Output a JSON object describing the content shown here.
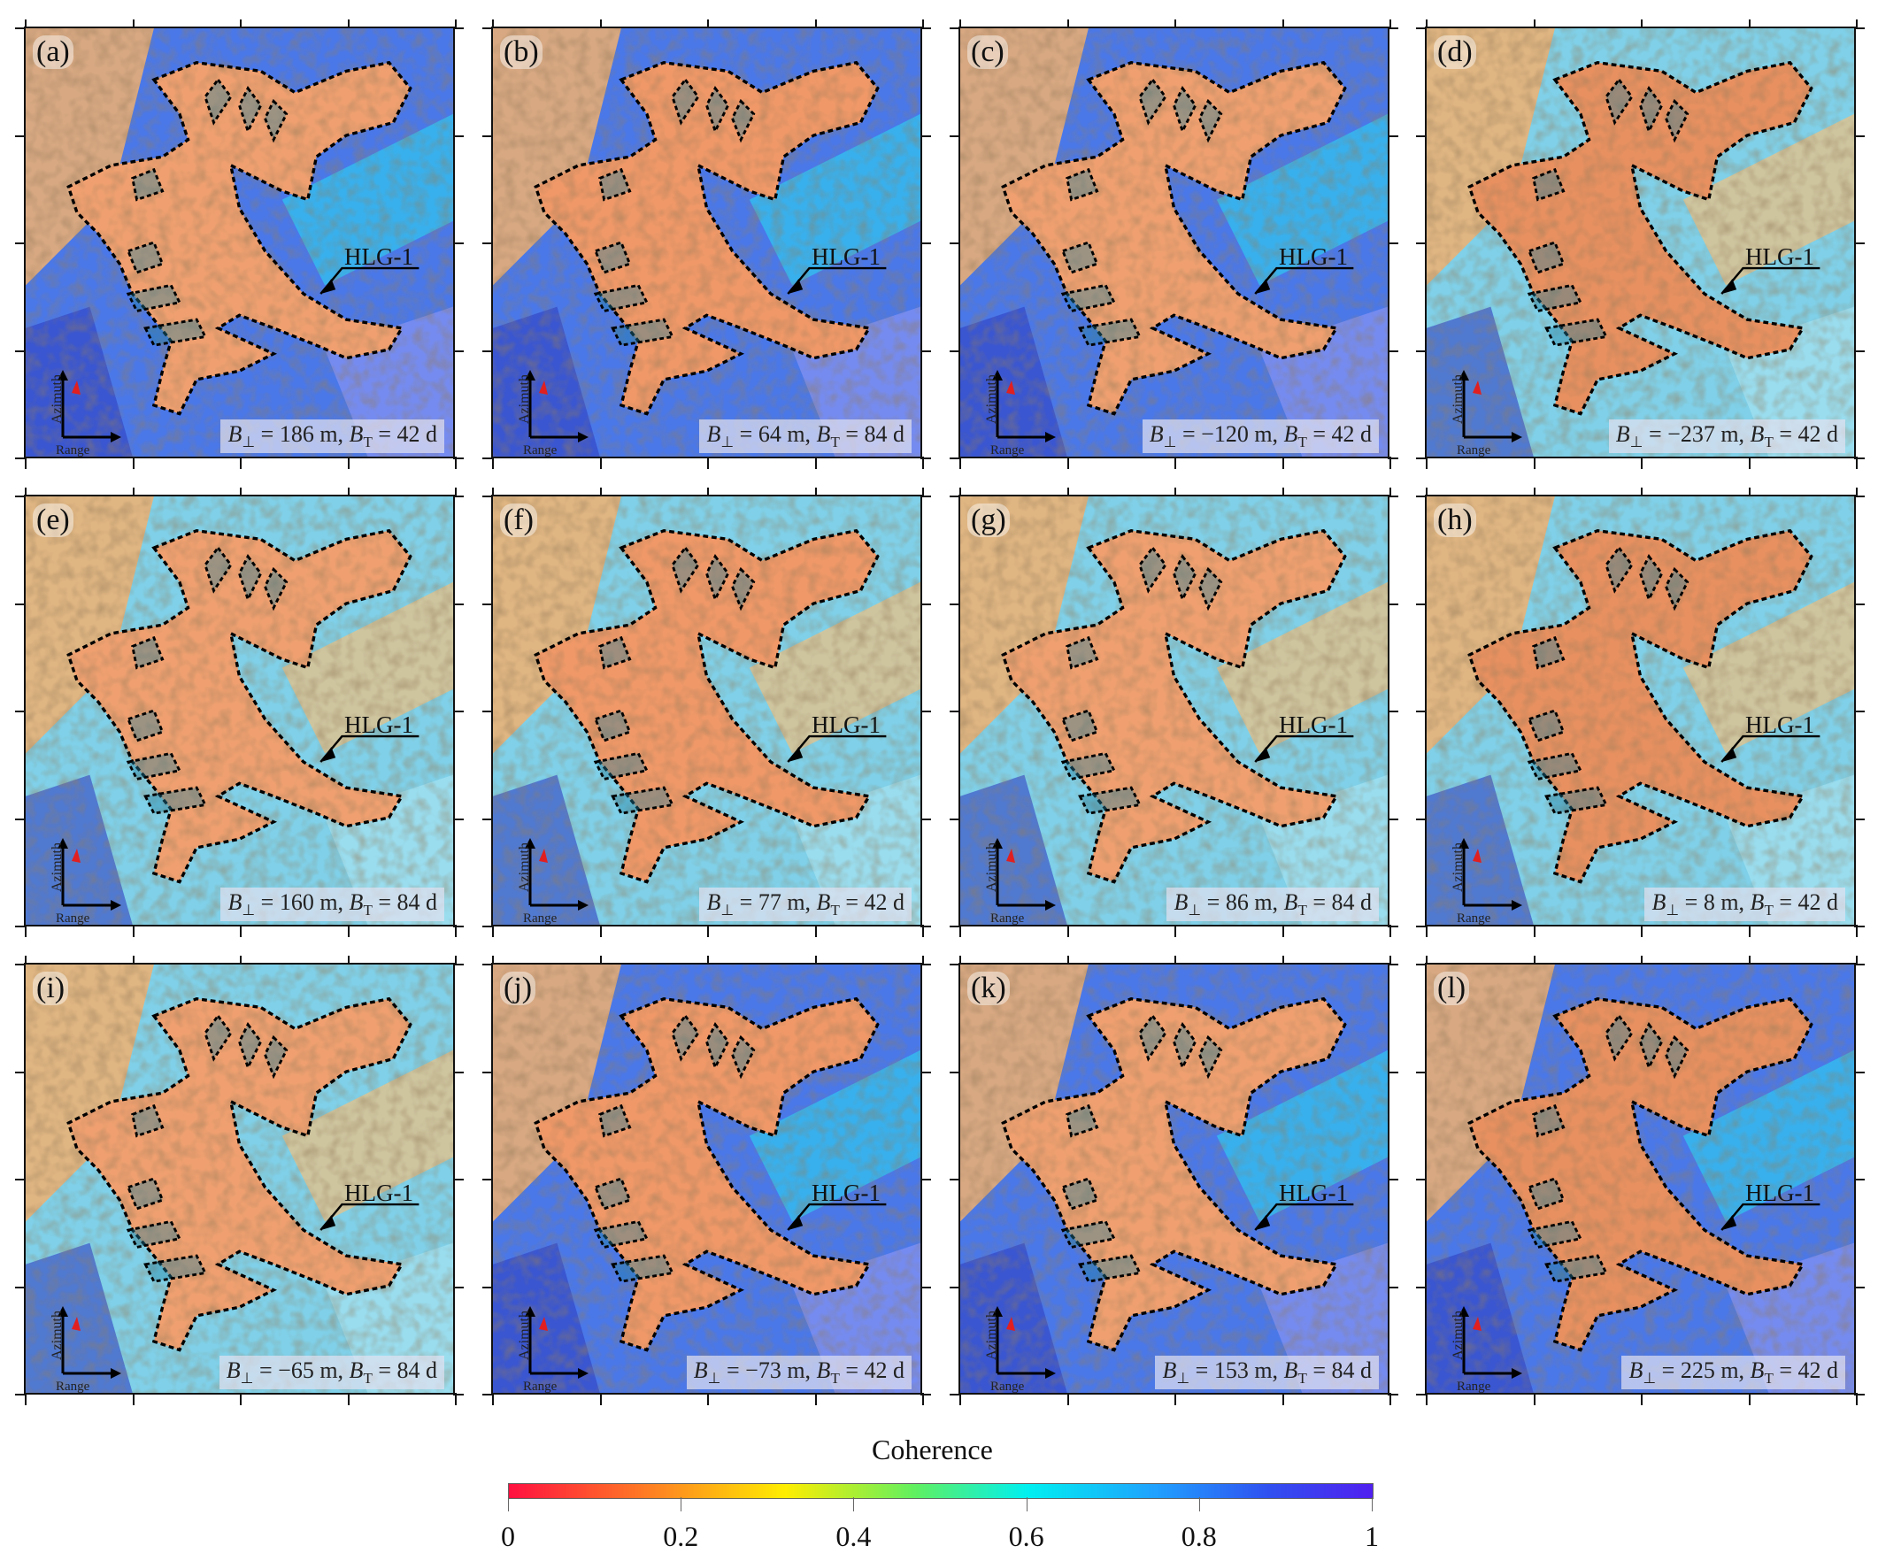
{
  "symbols": {
    "b": "B",
    "perp": "⊥",
    "temp": "T",
    "eq": " = ",
    "sep": ", "
  },
  "feature_label": "HLG-1",
  "axis_labels": {
    "azimuth": "Azimuth",
    "range": "Range",
    "north": "N"
  },
  "panels": [
    {
      "label": "(a)",
      "bperp": "186 m",
      "bt": "42 d"
    },
    {
      "label": "(b)",
      "bperp": "64 m",
      "bt": "84 d"
    },
    {
      "label": "(c)",
      "bperp": "−120 m",
      "bt": "42 d"
    },
    {
      "label": "(d)",
      "bperp": "−237 m",
      "bt": "42 d"
    },
    {
      "label": "(e)",
      "bperp": "160 m",
      "bt": "84 d"
    },
    {
      "label": "(f)",
      "bperp": "77 m",
      "bt": "42 d"
    },
    {
      "label": "(g)",
      "bperp": "86 m",
      "bt": "84 d"
    },
    {
      "label": "(h)",
      "bperp": "8 m",
      "bt": "42 d"
    },
    {
      "label": "(i)",
      "bperp": "−65 m",
      "bt": "84 d"
    },
    {
      "label": "(j)",
      "bperp": "−73 m",
      "bt": "42 d"
    },
    {
      "label": "(k)",
      "bperp": "153 m",
      "bt": "84 d"
    },
    {
      "label": "(l)",
      "bperp": "225 m",
      "bt": "42 d"
    }
  ],
  "colorbar": {
    "title": "Coherence",
    "ticks": [
      "0",
      "0.2",
      "0.4",
      "0.6",
      "0.8",
      "1"
    ],
    "range": [
      0,
      1
    ],
    "colormap": [
      "#ff1040",
      "#ff8a20",
      "#ffee00",
      "#60f060",
      "#00f0f0",
      "#20a0ff",
      "#3050f0",
      "#5020f0"
    ]
  },
  "colors": {
    "landslide_outline": "#000000",
    "north_arrow": "#e02020"
  }
}
